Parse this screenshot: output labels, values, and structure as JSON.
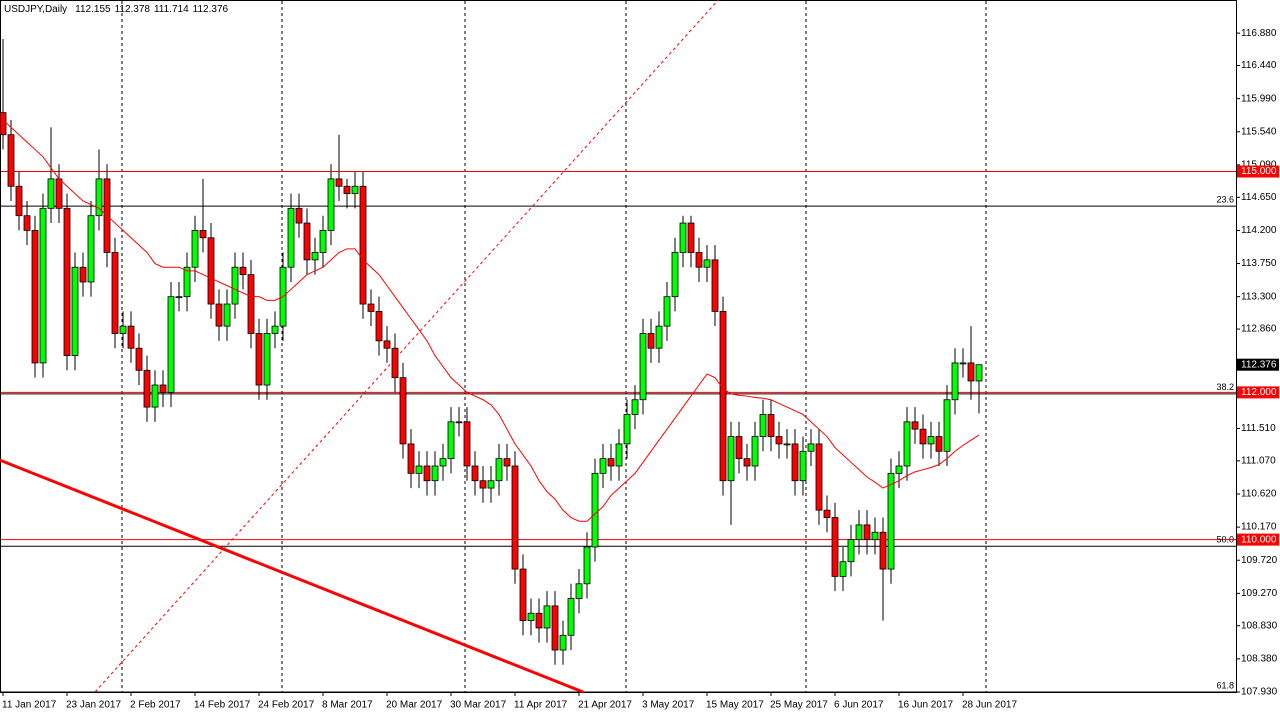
{
  "chart_data": {
    "type": "candlestick",
    "header": {
      "symbol": "USDJPY,Daily",
      "values": [
        112.155,
        112.378,
        111.714,
        112.376
      ]
    },
    "categories": [
      "11 Jan 2017",
      null,
      null,
      null,
      null,
      null,
      null,
      null,
      "23 Jan 2017",
      null,
      null,
      null,
      null,
      null,
      null,
      null,
      "2 Feb 2017",
      null,
      null,
      null,
      null,
      null,
      null,
      null,
      "14 Feb 2017",
      null,
      null,
      null,
      null,
      null,
      null,
      null,
      "24 Feb 2017",
      null,
      null,
      null,
      null,
      null,
      null,
      null,
      "8 Mar 2017",
      null,
      null,
      null,
      null,
      null,
      null,
      null,
      "20 Mar 2017",
      null,
      null,
      null,
      null,
      null,
      null,
      null,
      "30 Mar 2017",
      null,
      null,
      null,
      null,
      null,
      null,
      null,
      "11 Apr 2017",
      null,
      null,
      null,
      null,
      null,
      null,
      null,
      "21 Apr 2017",
      null,
      null,
      null,
      null,
      null,
      null,
      null,
      "3 May 2017",
      null,
      null,
      null,
      null,
      null,
      null,
      null,
      "15 May 2017",
      null,
      null,
      null,
      null,
      null,
      null,
      null,
      "25 May 2017",
      null,
      null,
      null,
      null,
      null,
      null,
      null,
      "6 Jun 2017",
      null,
      null,
      null,
      null,
      null,
      null,
      null,
      "16 Jun 2017",
      null,
      null,
      null,
      null,
      null,
      null,
      null,
      "28 Jun 2017",
      null,
      null
    ],
    "open": [
      115.8,
      115.5,
      114.8,
      114.4,
      114.2,
      112.4,
      114.5,
      114.9,
      114.5,
      112.5,
      113.7,
      113.5,
      114.4,
      114.9,
      113.9,
      112.8,
      112.9,
      112.6,
      112.3,
      111.8,
      112.1,
      112.0,
      113.3,
      113.3,
      113.7,
      114.2,
      114.1,
      113.2,
      112.9,
      113.2,
      113.7,
      113.6,
      112.8,
      112.1,
      112.8,
      112.9,
      113.7,
      114.5,
      114.3,
      113.8,
      113.9,
      114.2,
      114.9,
      114.8,
      114.7,
      114.8,
      113.2,
      113.1,
      112.7,
      112.6,
      112.2,
      111.3,
      110.9,
      111.0,
      110.8,
      111.0,
      111.1,
      111.6,
      111.6,
      111.0,
      110.8,
      110.7,
      110.8,
      111.1,
      111.0,
      109.6,
      108.9,
      109.0,
      108.8,
      109.1,
      108.5,
      108.7,
      109.2,
      109.4,
      109.9,
      110.9,
      111.1,
      111.0,
      111.3,
      111.7,
      111.9,
      112.8,
      112.6,
      112.9,
      113.3,
      113.9,
      114.3,
      113.9,
      113.7,
      113.8,
      113.1,
      110.8,
      111.4,
      111.1,
      111.0,
      111.4,
      111.7,
      111.4,
      111.3,
      111.3,
      110.8,
      111.2,
      111.3,
      110.4,
      110.3,
      109.5,
      109.7,
      110.0,
      110.2,
      110.0,
      110.1,
      109.6,
      110.9,
      111.0,
      111.6,
      111.5,
      111.3,
      111.4,
      111.2,
      111.9,
      112.4,
      112.4,
      112.155
    ],
    "high": [
      116.8,
      115.7,
      115.0,
      114.6,
      114.4,
      114.7,
      115.6,
      115.1,
      114.7,
      113.9,
      113.9,
      114.6,
      115.3,
      115.1,
      114.1,
      113.1,
      113.1,
      112.8,
      112.5,
      112.3,
      112.3,
      113.5,
      113.5,
      113.9,
      114.4,
      114.9,
      114.3,
      113.4,
      113.4,
      113.9,
      113.9,
      113.8,
      113.0,
      113.0,
      113.1,
      113.9,
      114.7,
      114.7,
      114.5,
      114.1,
      114.4,
      115.1,
      115.5,
      114.9,
      115.0,
      115.0,
      113.4,
      113.3,
      112.9,
      112.8,
      112.4,
      111.5,
      111.2,
      111.2,
      111.2,
      111.3,
      111.8,
      111.8,
      111.8,
      111.2,
      111.0,
      111.0,
      111.3,
      111.3,
      111.2,
      109.8,
      109.2,
      109.2,
      109.3,
      109.3,
      108.9,
      109.4,
      109.6,
      110.1,
      111.1,
      111.3,
      111.3,
      111.5,
      111.9,
      112.1,
      113.0,
      113.0,
      113.1,
      113.5,
      114.1,
      114.4,
      114.4,
      114.1,
      114.0,
      114.0,
      113.3,
      111.6,
      111.6,
      111.3,
      111.6,
      111.9,
      111.9,
      111.6,
      111.5,
      111.5,
      111.4,
      111.5,
      111.5,
      110.6,
      110.5,
      109.9,
      110.2,
      110.4,
      110.4,
      110.3,
      110.3,
      111.1,
      111.2,
      111.8,
      111.8,
      111.7,
      111.6,
      111.6,
      112.1,
      112.6,
      112.6,
      112.9,
      112.378
    ],
    "low": [
      115.3,
      114.6,
      114.2,
      114.0,
      112.2,
      112.2,
      114.3,
      114.3,
      112.3,
      112.3,
      113.3,
      113.3,
      114.2,
      113.7,
      112.6,
      112.6,
      112.4,
      112.1,
      111.6,
      111.6,
      111.8,
      111.8,
      113.1,
      113.1,
      113.5,
      113.9,
      113.0,
      112.7,
      112.7,
      113.0,
      113.4,
      112.6,
      111.9,
      111.9,
      112.6,
      112.7,
      113.5,
      114.1,
      113.6,
      113.6,
      113.7,
      114.0,
      114.6,
      114.5,
      114.5,
      113.0,
      112.9,
      112.5,
      112.4,
      112.0,
      111.1,
      110.7,
      110.7,
      110.6,
      110.6,
      110.8,
      110.9,
      111.4,
      110.8,
      110.6,
      110.5,
      110.5,
      110.6,
      110.8,
      109.4,
      108.7,
      108.7,
      108.6,
      108.6,
      108.3,
      108.3,
      108.5,
      109.0,
      109.2,
      109.7,
      110.7,
      110.8,
      110.8,
      111.1,
      111.5,
      111.7,
      112.4,
      112.4,
      112.7,
      113.1,
      113.7,
      113.7,
      113.5,
      113.5,
      112.9,
      110.6,
      110.2,
      110.9,
      110.8,
      110.8,
      111.2,
      111.2,
      111.1,
      111.1,
      110.6,
      110.6,
      111.0,
      110.2,
      110.1,
      109.3,
      109.3,
      109.5,
      109.8,
      109.8,
      109.8,
      108.9,
      109.4,
      110.7,
      110.8,
      111.3,
      111.1,
      111.1,
      111.0,
      111.0,
      111.7,
      112.2,
      111.9,
      111.714
    ],
    "close": [
      115.5,
      114.8,
      114.4,
      114.2,
      112.4,
      114.5,
      114.9,
      114.5,
      112.5,
      113.7,
      113.5,
      114.4,
      114.9,
      113.9,
      112.8,
      112.9,
      112.6,
      112.3,
      111.8,
      112.1,
      112.0,
      113.3,
      113.3,
      113.7,
      114.2,
      114.1,
      113.2,
      112.9,
      113.2,
      113.7,
      113.6,
      112.8,
      112.1,
      112.8,
      112.9,
      113.7,
      114.5,
      114.3,
      113.8,
      113.9,
      114.2,
      114.9,
      114.8,
      114.7,
      114.8,
      113.2,
      113.1,
      112.7,
      112.6,
      112.2,
      111.3,
      110.9,
      111.0,
      110.8,
      111.0,
      111.1,
      111.6,
      111.6,
      111.0,
      110.8,
      110.7,
      110.8,
      111.1,
      111.0,
      109.6,
      108.9,
      109.0,
      108.8,
      109.1,
      108.5,
      108.7,
      109.2,
      109.4,
      109.9,
      110.9,
      111.1,
      111.0,
      111.3,
      111.7,
      111.9,
      112.8,
      112.6,
      112.9,
      113.3,
      113.9,
      114.3,
      113.9,
      113.7,
      113.8,
      113.1,
      110.8,
      111.4,
      111.1,
      111.0,
      111.4,
      111.7,
      111.4,
      111.3,
      111.3,
      110.8,
      111.2,
      111.3,
      110.4,
      110.3,
      109.5,
      109.7,
      110.0,
      110.2,
      110.0,
      110.1,
      109.6,
      110.9,
      111.0,
      111.6,
      111.5,
      111.3,
      111.4,
      111.2,
      111.9,
      112.4,
      112.4,
      112.155,
      112.376
    ],
    "up_color": "#00ff00",
    "down_color": "#ff0000",
    "moving_average": {
      "color": "#ff0000",
      "values": [
        115.7,
        115.6,
        115.5,
        115.4,
        115.3,
        115.2,
        115.05,
        114.9,
        114.8,
        114.7,
        114.6,
        114.55,
        114.5,
        114.4,
        114.3,
        114.2,
        114.1,
        114.0,
        113.9,
        113.75,
        113.7,
        113.7,
        113.7,
        113.65,
        113.65,
        113.6,
        113.55,
        113.5,
        113.45,
        113.4,
        113.35,
        113.3,
        113.3,
        113.25,
        113.25,
        113.3,
        113.4,
        113.5,
        113.6,
        113.65,
        113.7,
        113.8,
        113.9,
        113.95,
        113.95,
        113.8,
        113.7,
        113.6,
        113.45,
        113.3,
        113.15,
        113.0,
        112.85,
        112.7,
        112.5,
        112.35,
        112.2,
        112.1,
        112.0,
        111.95,
        111.9,
        111.83,
        111.7,
        111.5,
        111.3,
        111.15,
        111.0,
        110.8,
        110.65,
        110.55,
        110.4,
        110.3,
        110.25,
        110.25,
        110.35,
        110.45,
        110.6,
        110.7,
        110.8,
        110.9,
        111.05,
        111.2,
        111.35,
        111.5,
        111.65,
        111.8,
        111.95,
        112.1,
        112.25,
        112.2,
        112.05,
        111.98,
        111.96,
        111.95,
        111.93,
        111.92,
        111.9,
        111.85,
        111.8,
        111.75,
        111.7,
        111.6,
        111.5,
        111.4,
        111.25,
        111.15,
        111.05,
        110.95,
        110.85,
        110.78,
        110.7,
        110.75,
        110.8,
        110.87,
        110.92,
        110.95,
        110.98,
        111.02,
        111.1,
        111.2,
        111.28,
        111.35,
        111.42
      ]
    },
    "ylim": [
      107.93,
      117.33
    ],
    "yticks": [
      {
        "value": 116.88,
        "label": "116.880"
      },
      {
        "value": 116.44,
        "label": "116.440"
      },
      {
        "value": 115.99,
        "label": "115.990"
      },
      {
        "value": 115.54,
        "label": "115.540"
      },
      {
        "value": 115.09,
        "label": "115.090"
      },
      {
        "value": 114.65,
        "label": "114.650"
      },
      {
        "value": 114.2,
        "label": "114.200"
      },
      {
        "value": 113.75,
        "label": "113.750"
      },
      {
        "value": 113.3,
        "label": "113.300"
      },
      {
        "value": 112.86,
        "label": "112.860"
      },
      {
        "value": 111.51,
        "label": "111.510"
      },
      {
        "value": 111.07,
        "label": "111.070"
      },
      {
        "value": 110.62,
        "label": "110.620"
      },
      {
        "value": 110.17,
        "label": "110.170"
      },
      {
        "value": 109.72,
        "label": "109.720"
      },
      {
        "value": 109.27,
        "label": "109.270"
      },
      {
        "value": 108.83,
        "label": "108.830"
      },
      {
        "value": 108.38,
        "label": "108.380"
      },
      {
        "value": 107.93,
        "label": "107.930"
      }
    ],
    "levels": [
      {
        "value": 115,
        "label": "115.000",
        "color": "#ff0000"
      },
      {
        "value": 112,
        "label": "112.000",
        "color": "#ff0000"
      },
      {
        "value": 110,
        "label": "110.000",
        "color": "#ff0000"
      }
    ],
    "fib_levels": [
      {
        "value": 114.53,
        "label": "23.6"
      },
      {
        "value": 111.98,
        "label": "38.2"
      },
      {
        "value": 109.91,
        "label": "50.0"
      },
      {
        "value": 107.93,
        "label": "61.8"
      }
    ],
    "current_price": 112.376,
    "trendlines": [
      {
        "x": [
          -0.4,
          72.5
        ],
        "y": [
          111.08,
          107.93
        ],
        "color": "#ff0000",
        "style": "solid"
      },
      {
        "x": [
          11.5,
          89.4
        ],
        "y": [
          107.93,
          117.33
        ],
        "color": "#ff0000",
        "style": "dotted"
      }
    ]
  }
}
